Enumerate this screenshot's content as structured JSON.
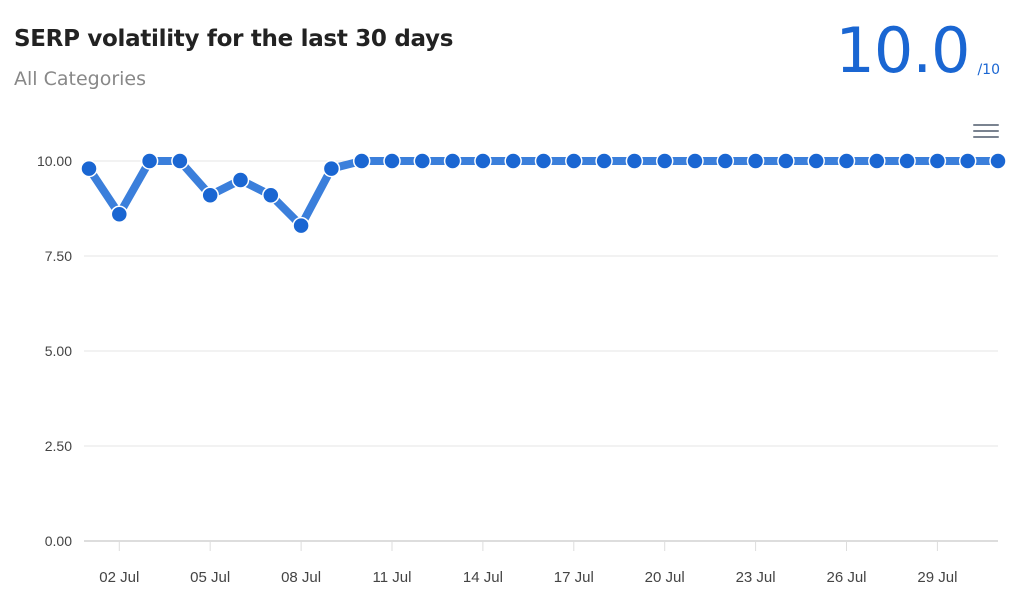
{
  "header": {
    "title": "SERP volatility for the last 30 days",
    "subtitle": "All Categories",
    "score": "10.0",
    "score_max": "/10"
  },
  "menu": {
    "icon": "hamburger-menu-icon"
  },
  "colors": {
    "accent": "#1a66d2",
    "line": "#3b7fdb",
    "grid": "#e6e6e6",
    "text": "#444444"
  },
  "chart_data": {
    "type": "line",
    "title": "SERP volatility for the last 30 days",
    "subtitle": "All Categories",
    "xlabel": "",
    "ylabel": "",
    "ylim": [
      0,
      10
    ],
    "yticks": [
      "0.00",
      "2.50",
      "5.00",
      "7.50",
      "10.00"
    ],
    "xticks": [
      "02 Jul",
      "05 Jul",
      "08 Jul",
      "11 Jul",
      "14 Jul",
      "17 Jul",
      "20 Jul",
      "23 Jul",
      "26 Jul",
      "29 Jul"
    ],
    "grid": true,
    "legend": "none",
    "categories": [
      "01 Jul",
      "02 Jul",
      "03 Jul",
      "04 Jul",
      "05 Jul",
      "06 Jul",
      "07 Jul",
      "08 Jul",
      "09 Jul",
      "10 Jul",
      "11 Jul",
      "12 Jul",
      "13 Jul",
      "14 Jul",
      "15 Jul",
      "16 Jul",
      "17 Jul",
      "18 Jul",
      "19 Jul",
      "20 Jul",
      "21 Jul",
      "22 Jul",
      "23 Jul",
      "24 Jul",
      "25 Jul",
      "26 Jul",
      "27 Jul",
      "28 Jul",
      "29 Jul",
      "30 Jul",
      "31 Jul"
    ],
    "series": [
      {
        "name": "Volatility",
        "values": [
          9.8,
          8.6,
          10.0,
          10.0,
          9.1,
          9.5,
          9.1,
          8.3,
          9.8,
          10.0,
          10.0,
          10.0,
          10.0,
          10.0,
          10.0,
          10.0,
          10.0,
          10.0,
          10.0,
          10.0,
          10.0,
          10.0,
          10.0,
          10.0,
          10.0,
          10.0,
          10.0,
          10.0,
          10.0,
          10.0,
          10.0
        ]
      }
    ]
  }
}
